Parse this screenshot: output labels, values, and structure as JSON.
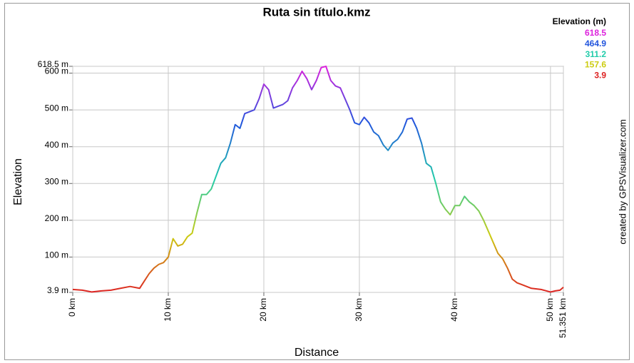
{
  "chart_data": {
    "type": "line",
    "title": "Ruta sin título.kmz",
    "x_label": "Distance",
    "y_label": "Elevation",
    "credit": "created by GPSVisualizer.com",
    "xlim": [
      0,
      51.351
    ],
    "ylim": [
      3.9,
      618.5
    ],
    "xticks": [
      {
        "value": 0,
        "label": "0 km"
      },
      {
        "value": 10,
        "label": "10 km"
      },
      {
        "value": 20,
        "label": "20 km"
      },
      {
        "value": 30,
        "label": "30 km"
      },
      {
        "value": 40,
        "label": "40 km"
      },
      {
        "value": 50,
        "label": "50 km"
      },
      {
        "value": 51.351,
        "label": "51.351 km"
      }
    ],
    "yticks": [
      {
        "value": 3.9,
        "label": "3.9 m"
      },
      {
        "value": 100,
        "label": "100 m"
      },
      {
        "value": 200,
        "label": "200 m"
      },
      {
        "value": 300,
        "label": "300 m"
      },
      {
        "value": 400,
        "label": "400 m"
      },
      {
        "value": 500,
        "label": "500 m"
      },
      {
        "value": 600,
        "label": "600 m"
      },
      {
        "value": 618.5,
        "label": "618.5 m"
      }
    ],
    "grid": true,
    "legend": {
      "title": "Elevation (m)",
      "stops": [
        {
          "value": 618.5,
          "color": "#dd22dd"
        },
        {
          "value": 464.9,
          "color": "#2255dd"
        },
        {
          "value": 311.2,
          "color": "#22ccaa"
        },
        {
          "value": 157.6,
          "color": "#cccc11"
        },
        {
          "value": 3.9,
          "color": "#dd2222"
        }
      ]
    },
    "x": [
      0,
      1,
      2,
      3,
      4,
      5,
      6,
      7,
      7.5,
      8,
      8.5,
      9,
      9.5,
      10,
      10.5,
      11,
      11.5,
      12,
      12.5,
      13,
      13.5,
      14,
      14.5,
      15,
      15.5,
      16,
      16.5,
      17,
      17.5,
      18,
      18.5,
      19,
      19.5,
      20,
      20.5,
      21,
      21.5,
      22,
      22.5,
      23,
      23.5,
      24,
      24.5,
      25,
      25.5,
      26,
      26.5,
      27,
      27.5,
      28,
      28.5,
      29,
      29.5,
      30,
      30.5,
      31,
      31.5,
      32,
      32.5,
      33,
      33.5,
      34,
      34.5,
      35,
      35.5,
      36,
      36.5,
      37,
      37.5,
      38,
      38.5,
      39,
      39.5,
      40,
      40.5,
      41,
      41.5,
      42,
      42.5,
      43,
      43.5,
      44,
      44.5,
      45,
      45.5,
      46,
      46.5,
      47,
      48,
      49,
      50,
      50.5,
      51,
      51.351
    ],
    "values": [
      12,
      10,
      5,
      8,
      10,
      15,
      20,
      15,
      35,
      55,
      70,
      80,
      85,
      100,
      150,
      130,
      135,
      155,
      165,
      220,
      270,
      270,
      285,
      320,
      355,
      370,
      410,
      460,
      450,
      490,
      495,
      500,
      530,
      570,
      555,
      505,
      510,
      515,
      525,
      560,
      580,
      605,
      585,
      555,
      580,
      615,
      618.5,
      580,
      565,
      560,
      530,
      500,
      465,
      460,
      480,
      465,
      440,
      430,
      405,
      390,
      410,
      420,
      440,
      475,
      478,
      450,
      410,
      355,
      345,
      300,
      250,
      230,
      215,
      240,
      240,
      265,
      250,
      240,
      225,
      200,
      170,
      140,
      110,
      95,
      70,
      40,
      30,
      25,
      15,
      12,
      5,
      8,
      10,
      18
    ]
  }
}
